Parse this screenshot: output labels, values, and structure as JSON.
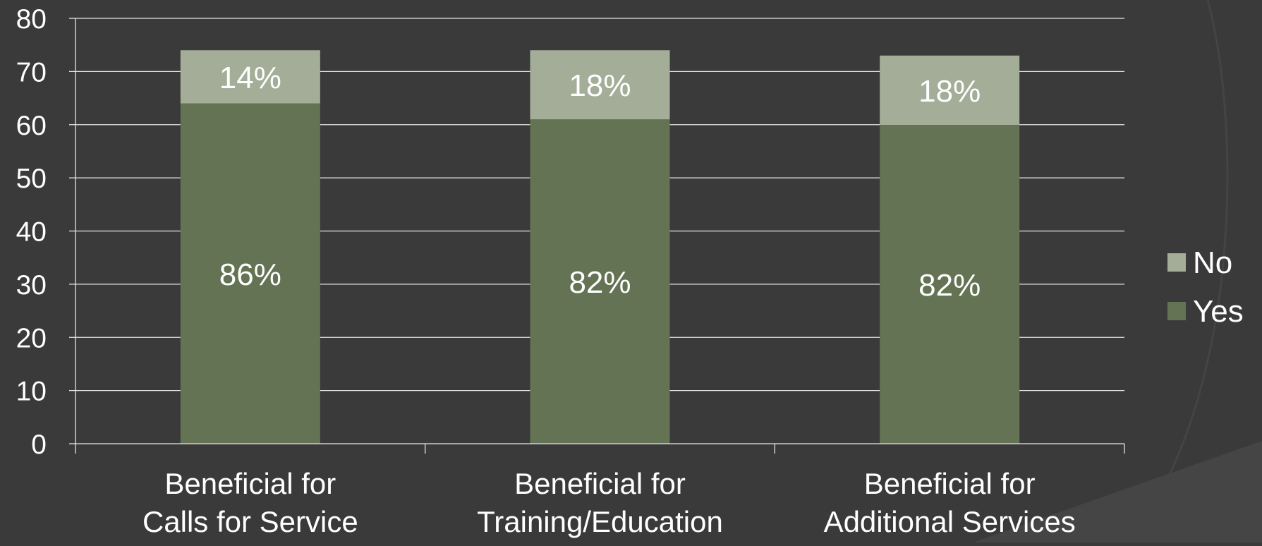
{
  "chart_data": {
    "type": "bar",
    "stacked": true,
    "categories": [
      [
        "Beneficial for",
        "Calls for Service"
      ],
      [
        "Beneficial for",
        "Training/Education"
      ],
      [
        "Beneficial for",
        "Additional Services"
      ]
    ],
    "series": [
      {
        "name": "Yes",
        "values": [
          64,
          61,
          60
        ],
        "labels": [
          "86%",
          "82%",
          "82%"
        ]
      },
      {
        "name": "No",
        "values": [
          10,
          13,
          13
        ],
        "labels": [
          "14%",
          "18%",
          "18%"
        ]
      }
    ],
    "ylim": [
      0,
      80
    ],
    "yticks": [
      0,
      10,
      20,
      30,
      40,
      50,
      60,
      70,
      80
    ],
    "grid": true,
    "legend_position": "right",
    "legend_order": [
      "No",
      "Yes"
    ],
    "colors": {
      "background": "#3a3a3a",
      "Yes": "#637353",
      "No": "#a3ad98",
      "grid": "#e6e6e6",
      "text": "#ffffff"
    }
  }
}
